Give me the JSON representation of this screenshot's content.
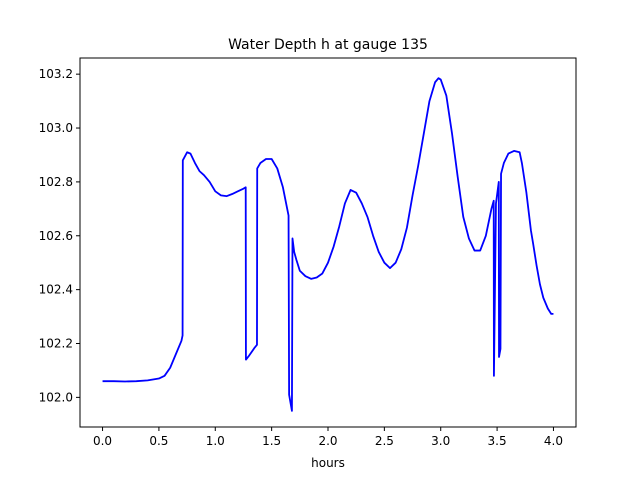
{
  "chart_data": {
    "type": "line",
    "title": "Water Depth h at gauge 135",
    "xlabel": "hours",
    "ylabel": "",
    "xlim": [
      -0.2,
      4.2
    ],
    "ylim": [
      101.89,
      103.26
    ],
    "x_ticks": [
      0.0,
      0.5,
      1.0,
      1.5,
      2.0,
      2.5,
      3.0,
      3.5,
      4.0
    ],
    "x_tick_labels": [
      "0.0",
      "0.5",
      "1.0",
      "1.5",
      "2.0",
      "2.5",
      "3.0",
      "3.5",
      "4.0"
    ],
    "y_ticks": [
      102.0,
      102.2,
      102.4,
      102.6,
      102.8,
      103.0,
      103.2
    ],
    "y_tick_labels": [
      "102.0",
      "102.2",
      "102.4",
      "102.6",
      "102.8",
      "103.0",
      "103.2"
    ],
    "grid": false,
    "legend": "none",
    "series": [
      {
        "color": "#0000ff",
        "points": [
          [
            0.0,
            102.06
          ],
          [
            0.1,
            102.06
          ],
          [
            0.2,
            102.059
          ],
          [
            0.3,
            102.06
          ],
          [
            0.4,
            102.063
          ],
          [
            0.5,
            102.07
          ],
          [
            0.55,
            102.08
          ],
          [
            0.6,
            102.11
          ],
          [
            0.65,
            102.16
          ],
          [
            0.7,
            102.21
          ],
          [
            0.71,
            102.23
          ],
          [
            0.712,
            102.88
          ],
          [
            0.75,
            102.91
          ],
          [
            0.78,
            102.905
          ],
          [
            0.82,
            102.87
          ],
          [
            0.86,
            102.84
          ],
          [
            0.9,
            102.825
          ],
          [
            0.95,
            102.8
          ],
          [
            1.0,
            102.765
          ],
          [
            1.05,
            102.75
          ],
          [
            1.1,
            102.747
          ],
          [
            1.15,
            102.755
          ],
          [
            1.2,
            102.765
          ],
          [
            1.25,
            102.775
          ],
          [
            1.27,
            102.78
          ],
          [
            1.272,
            102.14
          ],
          [
            1.3,
            102.155
          ],
          [
            1.35,
            102.185
          ],
          [
            1.37,
            102.195
          ],
          [
            1.372,
            102.85
          ],
          [
            1.4,
            102.87
          ],
          [
            1.45,
            102.885
          ],
          [
            1.5,
            102.885
          ],
          [
            1.55,
            102.85
          ],
          [
            1.6,
            102.78
          ],
          [
            1.65,
            102.675
          ],
          [
            1.655,
            102.01
          ],
          [
            1.68,
            101.95
          ],
          [
            1.685,
            102.59
          ],
          [
            1.7,
            102.54
          ],
          [
            1.72,
            102.51
          ],
          [
            1.75,
            102.47
          ],
          [
            1.8,
            102.45
          ],
          [
            1.85,
            102.44
          ],
          [
            1.9,
            102.445
          ],
          [
            1.95,
            102.46
          ],
          [
            2.0,
            102.5
          ],
          [
            2.05,
            102.56
          ],
          [
            2.1,
            102.635
          ],
          [
            2.15,
            102.72
          ],
          [
            2.2,
            102.77
          ],
          [
            2.25,
            102.76
          ],
          [
            2.3,
            102.72
          ],
          [
            2.35,
            102.67
          ],
          [
            2.4,
            102.6
          ],
          [
            2.45,
            102.54
          ],
          [
            2.5,
            102.5
          ],
          [
            2.55,
            102.48
          ],
          [
            2.6,
            102.5
          ],
          [
            2.65,
            102.55
          ],
          [
            2.7,
            102.63
          ],
          [
            2.75,
            102.75
          ],
          [
            2.8,
            102.86
          ],
          [
            2.85,
            102.98
          ],
          [
            2.9,
            103.1
          ],
          [
            2.95,
            103.17
          ],
          [
            2.98,
            103.185
          ],
          [
            3.0,
            103.18
          ],
          [
            3.05,
            103.12
          ],
          [
            3.1,
            102.98
          ],
          [
            3.15,
            102.82
          ],
          [
            3.2,
            102.67
          ],
          [
            3.25,
            102.59
          ],
          [
            3.3,
            102.545
          ],
          [
            3.35,
            102.545
          ],
          [
            3.4,
            102.6
          ],
          [
            3.45,
            102.7
          ],
          [
            3.47,
            102.73
          ],
          [
            3.472,
            102.08
          ],
          [
            3.49,
            102.72
          ],
          [
            3.515,
            102.8
          ],
          [
            3.517,
            102.15
          ],
          [
            3.53,
            102.18
          ],
          [
            3.535,
            102.83
          ],
          [
            3.56,
            102.87
          ],
          [
            3.6,
            102.905
          ],
          [
            3.65,
            102.915
          ],
          [
            3.7,
            102.91
          ],
          [
            3.72,
            102.87
          ],
          [
            3.76,
            102.76
          ],
          [
            3.8,
            102.62
          ],
          [
            3.82,
            102.57
          ],
          [
            3.85,
            102.49
          ],
          [
            3.88,
            102.42
          ],
          [
            3.91,
            102.37
          ],
          [
            3.95,
            102.33
          ],
          [
            3.98,
            102.31
          ],
          [
            4.0,
            102.31
          ]
        ]
      }
    ]
  }
}
